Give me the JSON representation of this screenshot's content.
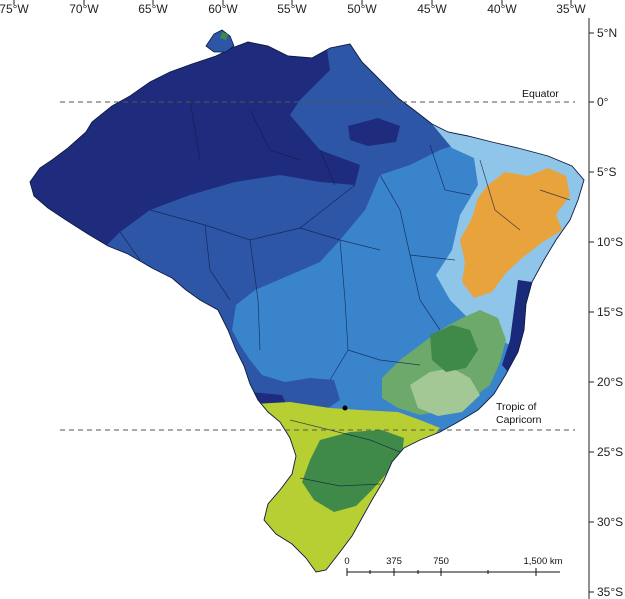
{
  "map": {
    "lon_ticks": [
      "75°W",
      "70°W",
      "65°W",
      "60°W",
      "55°W",
      "50°W",
      "45°W",
      "40°W",
      "35°W"
    ],
    "lat_ticks": [
      "5°N",
      "0°",
      "5°S",
      "10°S",
      "15°S",
      "20°S",
      "25°S",
      "30°S",
      "35°S"
    ],
    "equator_label": "Equator",
    "tropic_label_line1": "Tropic of",
    "tropic_label_line2": "Capricorn",
    "scale_labels": [
      "0",
      "375",
      "750",
      "1,500 km"
    ],
    "zone_colors": {
      "very_dark_blue": "#1f2c7e",
      "dark_blue": "#2e56a7",
      "medium_blue": "#3a84cc",
      "light_blue": "#8ec5e8",
      "orange": "#e8a33d",
      "dark_green": "#3f8a48",
      "medium_green": "#6da96b",
      "light_green": "#a3c896",
      "yellow_green": "#b8cf33",
      "border_navy": "#1a2a7a"
    }
  }
}
